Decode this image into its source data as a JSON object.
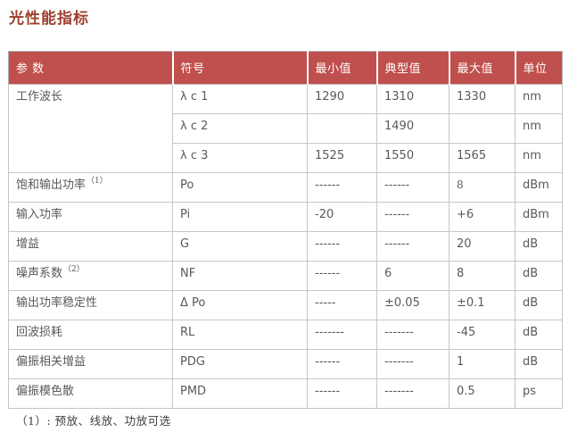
{
  "page": {
    "title": "光性能指标",
    "footnote": "（1）: 预放、线放、功放可选"
  },
  "colors": {
    "header_bg": "#c0504d",
    "header_text": "#ffffff",
    "title_color": "#9c4130",
    "cell_text": "#595959",
    "border_color": "#c6c6c6"
  },
  "table": {
    "headers": [
      "参 数",
      "符号",
      "最小值",
      "典型值",
      "最大值",
      "单位"
    ],
    "rows": [
      {
        "param": "工作波长",
        "rowspan": 3,
        "symbol": "λ c 1",
        "min": "1290",
        "typ": "1310",
        "max": "1330",
        "unit": "nm"
      },
      {
        "symbol": "λ c 2",
        "min": "",
        "typ": "1490",
        "max": "",
        "unit": "nm"
      },
      {
        "symbol": "λ c 3",
        "min": "1525",
        "typ": "1550",
        "max": "1565",
        "unit": "nm"
      },
      {
        "param": "饱和输出功率",
        "sup": "（1）",
        "symbol": "Po",
        "min": "------",
        "typ": "------",
        "max": {
          "text": "8",
          "style": "serif"
        },
        "unit": "dBm"
      },
      {
        "param": "输入功率",
        "symbol": "Pi",
        "min": "-20",
        "typ": "------",
        "max": "+6",
        "unit": "dBm"
      },
      {
        "param": "增益",
        "symbol": "G",
        "min": "------",
        "typ": "------",
        "max": "20",
        "unit": "dB"
      },
      {
        "param": "噪声系数",
        "sup": "（2）",
        "symbol": "NF",
        "min": "------",
        "typ": "6",
        "max": "8",
        "unit": "dB"
      },
      {
        "param": "输出功率稳定性",
        "symbol": "Δ Po",
        "min": "-----",
        "typ": "±0.05",
        "max": "±0.1",
        "unit": "dB"
      },
      {
        "param": "回波损耗",
        "symbol": "RL",
        "min": "-------",
        "typ": "-------",
        "max": "-45",
        "unit": "dB"
      },
      {
        "param": "偏振相关增益",
        "symbol": "PDG",
        "min": "------",
        "typ": "-------",
        "max": "1",
        "unit": "dB"
      },
      {
        "param": "偏振模色散",
        "symbol": "PMD",
        "min": "------",
        "typ": "-------",
        "max": "0.5",
        "unit": "ps"
      }
    ]
  }
}
